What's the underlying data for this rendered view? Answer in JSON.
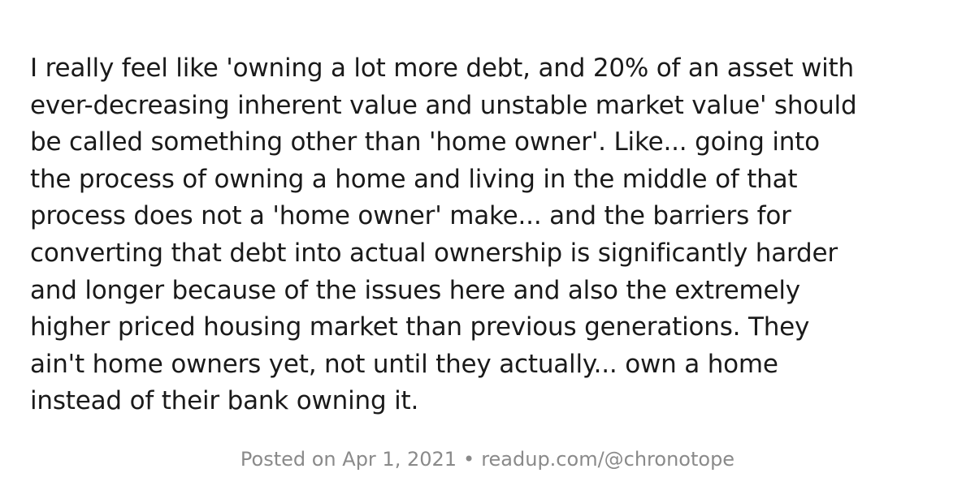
{
  "post": {
    "lines": [
      "I really feel like 'owning a lot more debt, and 20% of an asset with",
      "ever-decreasing inherent value and unstable market value' should",
      "be called something other than 'home owner'. Like... going into",
      "the process of owning a home and living in the middle of that",
      "process does not a 'home owner' make... and the barriers for",
      "converting that debt into actual ownership is significantly harder",
      "and longer because of the issues here and also the extremely",
      "higher priced housing market than previous generations. They",
      "ain't home owners yet, not until they actually... own a home",
      "instead of their bank owning it."
    ]
  },
  "footer": {
    "posted": "Posted on Apr 1, 2021",
    "separator": "•",
    "source": "readup.com/@chronotope"
  },
  "colors": {
    "text": "#1a1a1a",
    "footer_text": "#8a8a8a",
    "background": "#ffffff"
  }
}
